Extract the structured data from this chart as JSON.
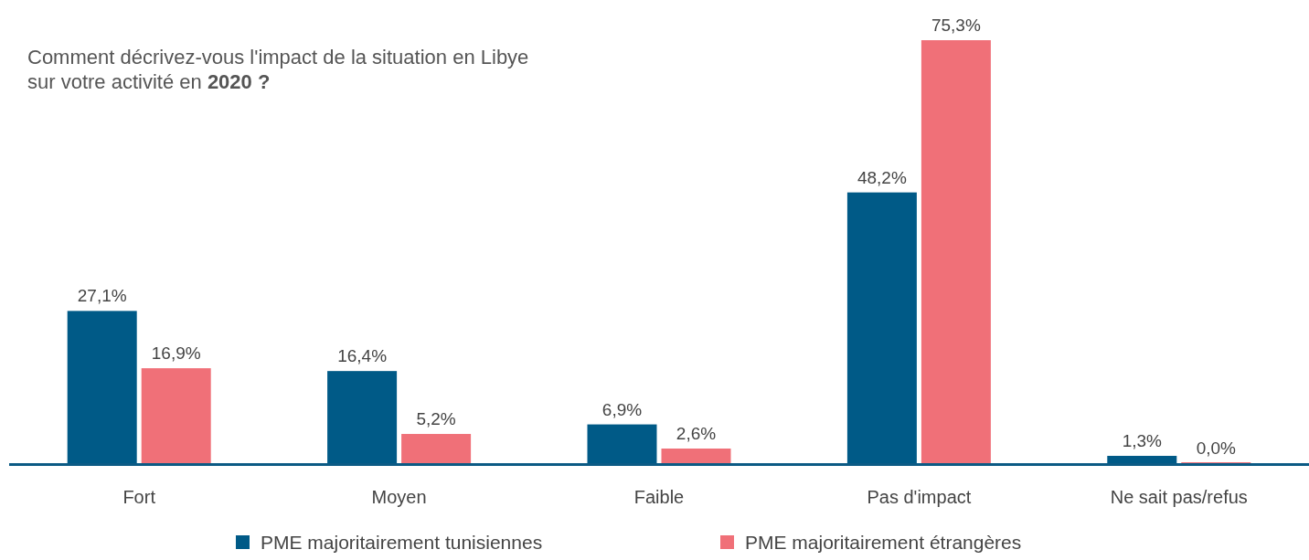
{
  "chart_data": {
    "type": "bar",
    "title": "Comment décrivez-vous l'impact de la situation en Libye sur votre activité en 2020 ?",
    "categories": [
      "Fort",
      "Moyen",
      "Faible",
      "Pas d'impact",
      "Ne sait pas/refus"
    ],
    "series": [
      {
        "name": "PME majoritairement tunisiennes",
        "color": "#005a87",
        "values": [
          27.1,
          16.4,
          6.9,
          48.2,
          1.3
        ],
        "value_labels": [
          "27,1%",
          "16,4%",
          "6,9%",
          "48,2%",
          "1,3%"
        ]
      },
      {
        "name": "PME majoritairement étrangères",
        "color": "#f07078",
        "values": [
          16.9,
          5.2,
          2.6,
          75.3,
          0.0
        ],
        "value_labels": [
          "16,9%",
          "5,2%",
          "2,6%",
          "75,3%",
          "0,0%"
        ]
      }
    ],
    "legend": "bottom"
  }
}
